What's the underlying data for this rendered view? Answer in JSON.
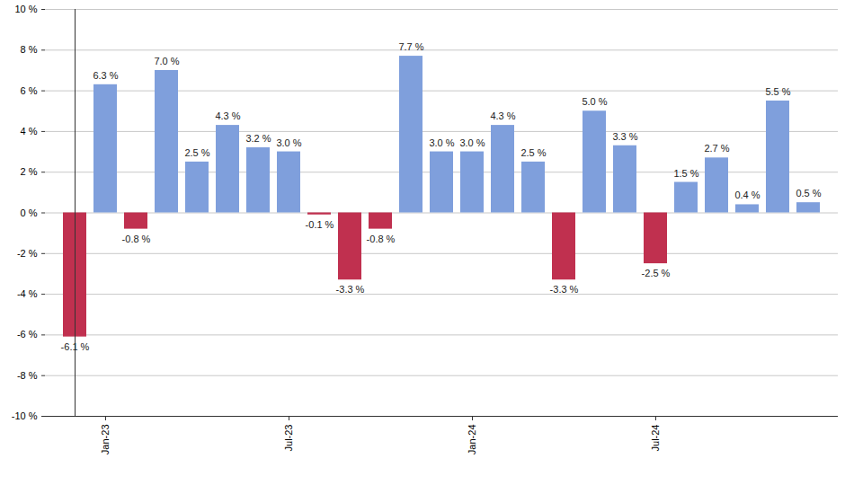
{
  "chart_data": {
    "type": "bar",
    "categories": [
      null,
      "Jan-23",
      null,
      null,
      null,
      null,
      null,
      "Jul-23",
      null,
      null,
      null,
      null,
      null,
      "Jan-24",
      null,
      null,
      null,
      null,
      null,
      "Jul-24",
      null,
      null,
      null,
      null,
      null
    ],
    "values": [
      -6.1,
      6.3,
      -0.8,
      7.0,
      2.5,
      4.3,
      3.2,
      3.0,
      -0.1,
      -3.3,
      -0.8,
      7.7,
      3.0,
      3.0,
      4.3,
      2.5,
      -3.3,
      5.0,
      3.3,
      -2.5,
      1.5,
      2.7,
      0.4,
      5.5,
      0.5
    ],
    "value_labels": [
      "-6.1 %",
      "6.3 %",
      "-0.8 %",
      "7.0 %",
      "2.5 %",
      "4.3 %",
      "3.2 %",
      "3.0 %",
      "-0.1 %",
      "-3.3 %",
      "-0.8 %",
      "7.7 %",
      "3.0 %",
      "3.0 %",
      "4.3 %",
      "2.5 %",
      "-3.3 %",
      "5.0 %",
      "3.3 %",
      "-2.5 %",
      "1.5 %",
      "2.7 %",
      "0.4 %",
      "5.5 %",
      "0.5 %"
    ],
    "colors": [
      "#c0304f",
      "#7f9fdc",
      "#c0304f",
      "#7f9fdc",
      "#7f9fdc",
      "#7f9fdc",
      "#7f9fdc",
      "#7f9fdc",
      "#c0304f",
      "#c0304f",
      "#c0304f",
      "#7f9fdc",
      "#7f9fdc",
      "#7f9fdc",
      "#7f9fdc",
      "#7f9fdc",
      "#c0304f",
      "#7f9fdc",
      "#7f9fdc",
      "#c0304f",
      "#7f9fdc",
      "#7f9fdc",
      "#7f9fdc",
      "#7f9fdc",
      "#7f9fdc"
    ],
    "ylim": [
      -10,
      10
    ],
    "yticks": [
      {
        "value": -10,
        "label": "-10 %"
      },
      {
        "value": -8,
        "label": "-8 %"
      },
      {
        "value": -6,
        "label": "-6 %"
      },
      {
        "value": -4,
        "label": "-4 %"
      },
      {
        "value": -2,
        "label": "-2 %"
      },
      {
        "value": 0,
        "label": "0 %"
      },
      {
        "value": 2,
        "label": "2 %"
      },
      {
        "value": 4,
        "label": "4 %"
      },
      {
        "value": 6,
        "label": "6 %"
      },
      {
        "value": 8,
        "label": "8 %"
      },
      {
        "value": 10,
        "label": "10 %"
      }
    ],
    "grid": true,
    "data_labels": true
  }
}
